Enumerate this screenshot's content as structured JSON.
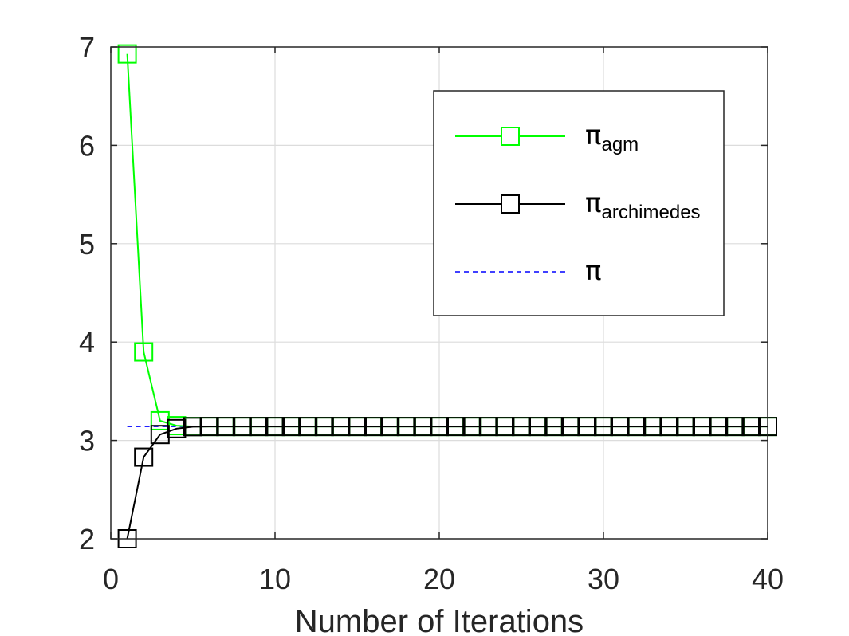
{
  "chart_data": {
    "type": "line",
    "title": "",
    "xlabel": "Number of Iterations",
    "ylabel": "",
    "xlim": [
      0,
      40
    ],
    "ylim": [
      2,
      7
    ],
    "xticks": [
      0,
      10,
      20,
      30,
      40
    ],
    "yticks": [
      2,
      3,
      4,
      5,
      6,
      7
    ],
    "grid": true,
    "legend_position": "top-right",
    "series": [
      {
        "name": "π_agm",
        "legend_main": "π",
        "legend_sub": "agm",
        "color": "#00ff00",
        "marker": "square",
        "line_style": "solid",
        "x": [
          1,
          2,
          3,
          4,
          5,
          6,
          7,
          8,
          9,
          10,
          11,
          12,
          13,
          14,
          15,
          16,
          17,
          18,
          19,
          20,
          21,
          22,
          23,
          24,
          25,
          26,
          27,
          28,
          29,
          30,
          31,
          32,
          33,
          34,
          35,
          36,
          37,
          38,
          39,
          40
        ],
        "y": [
          6.93,
          3.9,
          3.2,
          3.15,
          3.1416,
          3.1416,
          3.1416,
          3.1416,
          3.1416,
          3.1416,
          3.1416,
          3.1416,
          3.1416,
          3.1416,
          3.1416,
          3.1416,
          3.1416,
          3.1416,
          3.1416,
          3.1416,
          3.1416,
          3.1416,
          3.1416,
          3.1416,
          3.1416,
          3.1416,
          3.1416,
          3.1416,
          3.1416,
          3.1416,
          3.1416,
          3.1416,
          3.1416,
          3.1416,
          3.1416,
          3.1416,
          3.1416,
          3.1416,
          3.1416,
          3.1416
        ]
      },
      {
        "name": "π_archimedes",
        "legend_main": "π",
        "legend_sub": "archimedes",
        "color": "#000000",
        "marker": "square",
        "line_style": "solid",
        "x": [
          1,
          2,
          3,
          4,
          5,
          6,
          7,
          8,
          9,
          10,
          11,
          12,
          13,
          14,
          15,
          16,
          17,
          18,
          19,
          20,
          21,
          22,
          23,
          24,
          25,
          26,
          27,
          28,
          29,
          30,
          31,
          32,
          33,
          34,
          35,
          36,
          37,
          38,
          39,
          40
        ],
        "y": [
          2.0,
          2.83,
          3.06,
          3.12,
          3.14,
          3.1416,
          3.1416,
          3.1416,
          3.1416,
          3.1416,
          3.1416,
          3.1416,
          3.1416,
          3.1416,
          3.1416,
          3.1416,
          3.1416,
          3.1416,
          3.1416,
          3.1416,
          3.1416,
          3.1416,
          3.1416,
          3.1416,
          3.1416,
          3.1416,
          3.1416,
          3.1416,
          3.1416,
          3.1416,
          3.1416,
          3.1416,
          3.1416,
          3.1416,
          3.1416,
          3.1416,
          3.1416,
          3.1416,
          3.1416,
          3.1416
        ]
      },
      {
        "name": "π",
        "legend_main": "π",
        "legend_sub": "",
        "color": "#0000ff",
        "marker": "none",
        "line_style": "dashed",
        "x": [
          1,
          40
        ],
        "y": [
          3.1416,
          3.1416
        ]
      }
    ]
  }
}
